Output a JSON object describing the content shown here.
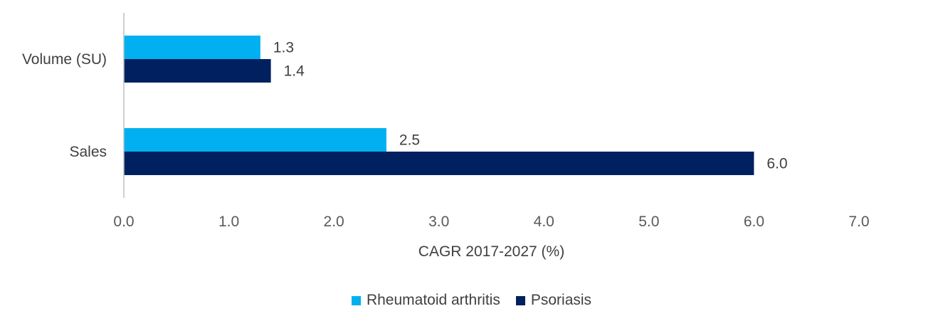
{
  "chart_data": {
    "type": "bar",
    "orientation": "horizontal",
    "categories": [
      "Volume (SU)",
      "Sales"
    ],
    "series": [
      {
        "name": "Rheumatoid arthritis",
        "values": [
          1.3,
          2.5
        ],
        "color": "#00B0F0"
      },
      {
        "name": "Psoriasis",
        "values": [
          1.4,
          6.0
        ],
        "color": "#002060"
      }
    ],
    "xlabel": "CAGR 2017-2027 (%)",
    "ylabel": "",
    "xlim": [
      0,
      7
    ],
    "xticks": [
      "0.0",
      "1.0",
      "2.0",
      "3.0",
      "4.0",
      "5.0",
      "6.0",
      "7.0"
    ],
    "grid": false,
    "legend": "bottom-center",
    "data_labels": true
  }
}
